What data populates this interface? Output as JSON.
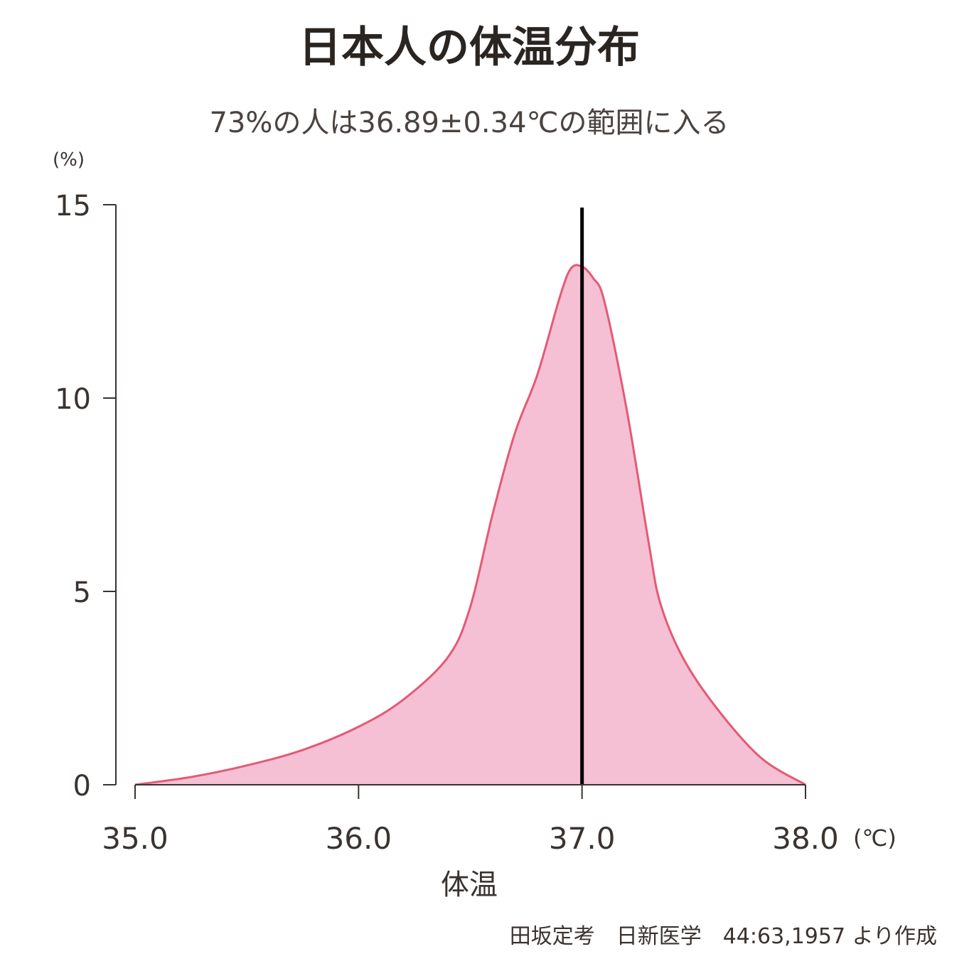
{
  "chart_data": {
    "type": "area",
    "title": "日本人の体温分布",
    "subtitle": "73%の人は36.89±0.34℃の範囲に入る",
    "xlabel": "体温",
    "x_unit": "(℃)",
    "y_unit": "(%)",
    "xlim": [
      35.0,
      38.0
    ],
    "ylim": [
      0,
      15
    ],
    "x_ticks": [
      "35.0",
      "36.0",
      "37.0",
      "38.0"
    ],
    "y_ticks": [
      "0",
      "5",
      "10",
      "15"
    ],
    "grid": false,
    "series": [
      {
        "x": [
          35.0,
          35.25,
          35.5,
          35.75,
          36.0,
          36.2,
          36.4,
          36.5,
          36.6,
          36.7,
          36.8,
          36.9,
          36.95,
          37.0,
          37.05,
          37.1,
          37.2,
          37.3,
          37.35,
          37.45,
          37.6,
          37.8,
          38.0
        ],
        "y": [
          0,
          0.2,
          0.5,
          0.9,
          1.5,
          2.2,
          3.3,
          4.6,
          7.0,
          9.1,
          10.6,
          12.6,
          13.35,
          13.4,
          13.1,
          12.5,
          9.7,
          6.2,
          4.7,
          3.3,
          2.0,
          0.7,
          0
        ]
      }
    ],
    "reference_line_x": 37.0,
    "colors": {
      "fill": "#f5c0d3",
      "stroke": "#e35a76",
      "reference_line": "#000000",
      "axis": "#3a3330"
    }
  },
  "source_note": "田坂定考　日新医学　44:63,1957 より作成"
}
